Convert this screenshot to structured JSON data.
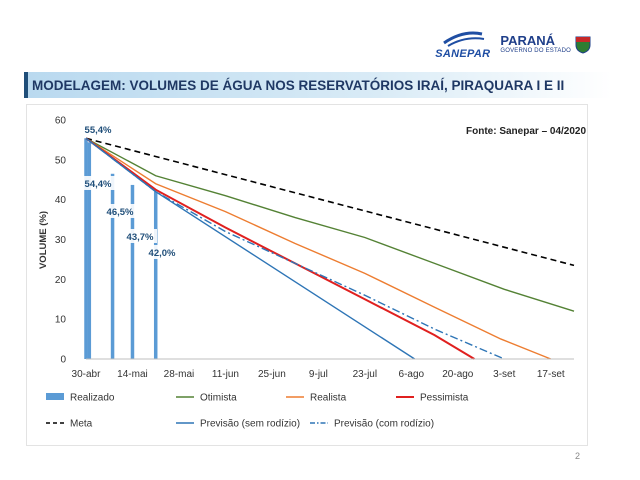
{
  "header": {
    "title": "MODELAGEM: VOLUMES DE ÁGUA NOS RESERVATÓRIOS IRAÍ, PIRAQUARA I E II",
    "logo_sanepar": "SANEPAR",
    "logo_parana": "PARANÁ",
    "logo_parana_sub": "GOVERNO DO ESTADO"
  },
  "page_number": "2",
  "colors": {
    "realizado": "#5b9bd5",
    "meta": "#000000",
    "otimista": "#548235",
    "previsao_sem": "#2e75b6",
    "realista": "#ed7d31",
    "previsao_com": "#2e75b6",
    "pessimista": "#e0201f"
  },
  "chart_data": {
    "type": "line",
    "title": "",
    "source": "Fonte: Sanepar – 04/2020",
    "xlabel": "",
    "ylabel": "VOLUME (%)",
    "ylim": [
      0,
      60
    ],
    "yticks": [
      0,
      10,
      20,
      30,
      40,
      50,
      60
    ],
    "xlim": [
      0,
      147
    ],
    "x_ticks": [
      {
        "day": 0,
        "label": "30-abr"
      },
      {
        "day": 14,
        "label": "14-mai"
      },
      {
        "day": 28,
        "label": "28-mai"
      },
      {
        "day": 42,
        "label": "11-jun"
      },
      {
        "day": 56,
        "label": "25-jun"
      },
      {
        "day": 70,
        "label": "9-jul"
      },
      {
        "day": 84,
        "label": "23-jul"
      },
      {
        "day": 98,
        "label": "6-ago"
      },
      {
        "day": 112,
        "label": "20-ago"
      },
      {
        "day": 126,
        "label": "3-set"
      },
      {
        "day": 140,
        "label": "17-set"
      }
    ],
    "bars": {
      "name": "Realizado",
      "points": [
        {
          "day": 0,
          "value": 55.4,
          "label": "55,4%"
        },
        {
          "day": 1,
          "value": 54.4,
          "label": "54,4%"
        },
        {
          "day": 8,
          "value": 46.5,
          "label": "46,5%"
        },
        {
          "day": 14,
          "value": 43.7,
          "label": "43,7%"
        },
        {
          "day": 21,
          "value": 42.0,
          "label": "42,0%"
        }
      ]
    },
    "series": [
      {
        "name": "Meta",
        "key": "meta",
        "style": "dashed",
        "x": [
          0,
          147
        ],
        "y": [
          55.4,
          23.5
        ]
      },
      {
        "name": "Otimista",
        "key": "otimista",
        "style": "solid",
        "x": [
          0,
          21,
          42,
          63,
          84,
          105,
          126,
          147
        ],
        "y": [
          55.4,
          46,
          41,
          35.5,
          30.5,
          24,
          17.5,
          12
        ]
      },
      {
        "name": "Realista",
        "key": "realista",
        "style": "solid",
        "x": [
          0,
          21,
          42,
          63,
          84,
          105,
          125,
          140
        ],
        "y": [
          55.4,
          44,
          37,
          29,
          21.5,
          13,
          5,
          0
        ]
      },
      {
        "name": "Pessimista",
        "key": "pessimista",
        "style": "solid",
        "x": [
          0,
          21,
          42,
          63,
          84,
          105,
          117
        ],
        "y": [
          55.4,
          42.5,
          33,
          24,
          15,
          6,
          0
        ]
      },
      {
        "name": "Previsão (sem rodízio)",
        "key": "previsao_sem",
        "style": "solid",
        "x": [
          0,
          21,
          99
        ],
        "y": [
          55.4,
          42.0,
          0
        ]
      },
      {
        "name": "Previsão (com rodízio)",
        "key": "previsao_com",
        "style": "dashdot",
        "x": [
          0,
          21,
          42,
          63,
          84,
          105,
          126
        ],
        "y": [
          55.4,
          42.0,
          32,
          24,
          16,
          7.5,
          0
        ]
      }
    ],
    "legend": [
      {
        "name": "Realizado",
        "key": "realizado",
        "kind": "bar"
      },
      {
        "name": "Otimista",
        "key": "otimista",
        "kind": "solid"
      },
      {
        "name": "Realista",
        "key": "realista",
        "kind": "solid"
      },
      {
        "name": "Pessimista",
        "key": "pessimista",
        "kind": "solid"
      },
      {
        "name": "Meta",
        "key": "meta",
        "kind": "dashed"
      },
      {
        "name": "Previsão (sem rodízio)",
        "key": "previsao_sem",
        "kind": "solid"
      },
      {
        "name": "Previsão (com rodízio)",
        "key": "previsao_com",
        "kind": "dashdot"
      }
    ]
  }
}
